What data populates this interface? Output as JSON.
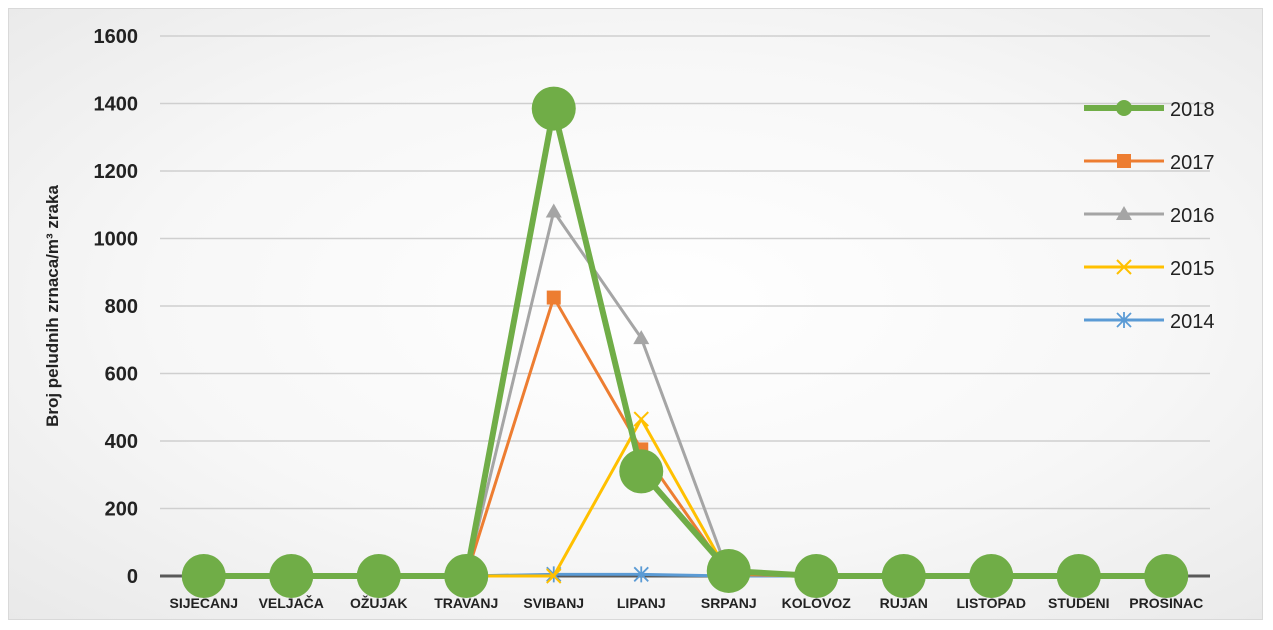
{
  "chart_data": {
    "type": "line",
    "title": "",
    "xlabel": "",
    "ylabel": "Broj peludnih zrnaca/m³ zraka",
    "ylim": [
      0,
      1600
    ],
    "yticks": [
      0,
      200,
      400,
      600,
      800,
      1000,
      1200,
      1400,
      1600
    ],
    "grid": true,
    "legend_position": "right",
    "categories": [
      "SIJEČANJ",
      "VELJAČA",
      "OŽUJAK",
      "TRAVANJ",
      "SVIBANJ",
      "LIPANJ",
      "SRPANJ",
      "KOLOVOZ",
      "RUJAN",
      "LISTOPAD",
      "STUDENI",
      "PROSINAC"
    ],
    "series": [
      {
        "name": "2018",
        "color": "#70ad47",
        "marker": "circle",
        "values": [
          0,
          0,
          0,
          0,
          1385,
          310,
          15,
          0,
          0,
          0,
          0,
          0
        ]
      },
      {
        "name": "2017",
        "color": "#ed7d31",
        "marker": "square",
        "values": [
          0,
          0,
          0,
          0,
          825,
          375,
          5,
          0,
          0,
          0,
          0,
          0
        ]
      },
      {
        "name": "2016",
        "color": "#a5a5a5",
        "marker": "triangle",
        "values": [
          0,
          0,
          0,
          0,
          1080,
          705,
          5,
          0,
          0,
          0,
          0,
          0
        ]
      },
      {
        "name": "2015",
        "color": "#ffc000",
        "marker": "x",
        "values": [
          0,
          0,
          0,
          0,
          0,
          465,
          5,
          0,
          0,
          0,
          0,
          0
        ]
      },
      {
        "name": "2014",
        "color": "#5b9bd5",
        "marker": "star",
        "values": [
          0,
          0,
          0,
          0,
          5,
          5,
          0,
          0,
          0,
          0,
          0,
          0
        ]
      }
    ]
  }
}
